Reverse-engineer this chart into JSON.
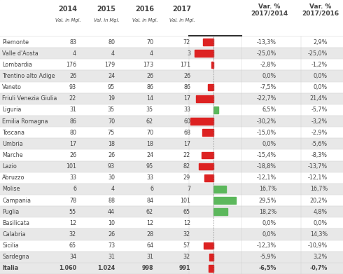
{
  "regions": [
    "Piemonte",
    "Valle d'Aosta",
    "Lombardia",
    "Trentino alto Adige",
    "Veneto",
    "Friuli Venezia Giulia",
    "Liguria",
    "Emilia Romagna",
    "Toscana",
    "Umbria",
    "Marche",
    "Lazio",
    "Abruzzo",
    "Molise",
    "Campania",
    "Puglia",
    "Basilicata",
    "Calabria",
    "Sicilia",
    "Sardegna",
    "Italia"
  ],
  "val_2014": [
    83,
    4,
    176,
    26,
    93,
    22,
    31,
    86,
    80,
    17,
    26,
    101,
    33,
    6,
    78,
    55,
    12,
    32,
    65,
    34,
    1060
  ],
  "val_2015": [
    80,
    4,
    179,
    24,
    95,
    19,
    35,
    70,
    75,
    18,
    26,
    93,
    30,
    4,
    88,
    44,
    10,
    26,
    73,
    31,
    1024
  ],
  "val_2016": [
    70,
    4,
    173,
    26,
    86,
    14,
    35,
    62,
    70,
    18,
    24,
    95,
    33,
    6,
    84,
    62,
    12,
    28,
    64,
    31,
    998
  ],
  "val_2017": [
    72,
    3,
    171,
    26,
    86,
    17,
    33,
    60,
    68,
    17,
    22,
    82,
    29,
    7,
    101,
    65,
    12,
    32,
    57,
    32,
    991
  ],
  "var_2017_2014": [
    -13.3,
    -25.0,
    -2.8,
    0.0,
    -7.5,
    -22.7,
    6.5,
    -30.2,
    -15.0,
    0.0,
    -15.4,
    -18.8,
    -12.1,
    16.7,
    29.5,
    18.2,
    0.0,
    0.0,
    -12.3,
    -5.9,
    -6.5
  ],
  "var_2017_2016": [
    2.9,
    -25.0,
    -1.2,
    0.0,
    0.0,
    21.4,
    -5.7,
    -3.2,
    -2.9,
    -5.6,
    -8.3,
    -13.7,
    -12.1,
    16.7,
    20.2,
    4.8,
    0.0,
    14.3,
    -10.9,
    3.2,
    -0.7
  ],
  "bg_color": "#f0f0f0",
  "row_even_bg": "#ffffff",
  "row_odd_bg": "#e8e8e8",
  "bar_red": "#dd2222",
  "bar_green": "#5cb85c",
  "text_color": "#444444",
  "header_line_color": "#333333",
  "grid_color": "#cccccc"
}
